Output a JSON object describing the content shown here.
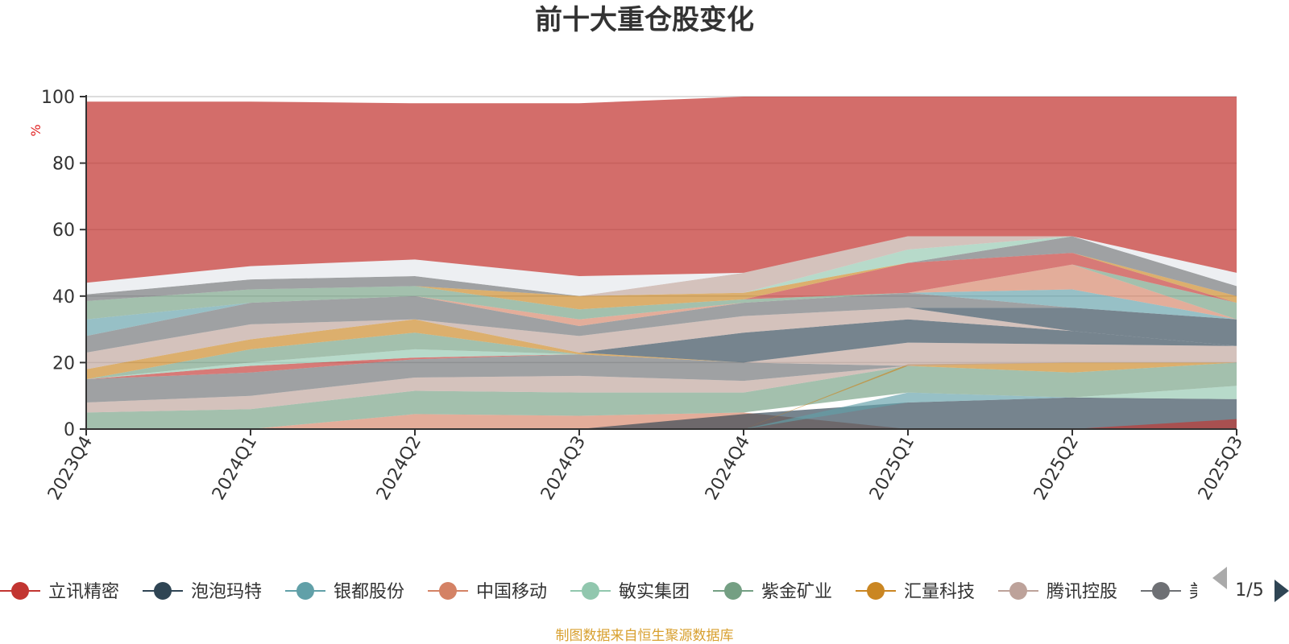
{
  "colors": {
    "source_text": "#d8a02f",
    "unit_text": "#e02020",
    "axis": "#333333",
    "grid": "#d0d0d0",
    "arrow_disabled": "#aaaaaa",
    "arrow_active": "#2f4554"
  },
  "pager": {
    "text": "1/5",
    "prev_icon": "triangle-left-icon",
    "next_icon": "triangle-right-icon"
  },
  "source_note": "制图数据来自恒生聚源数据库",
  "chart_data": {
    "type": "area",
    "title": "前十大重仓股变化",
    "ylabel": "%",
    "xlabel": "",
    "ylim": [
      0,
      100
    ],
    "yticks": [
      0,
      20,
      40,
      60,
      80,
      100
    ],
    "grid": true,
    "legend_position": "bottom",
    "categories": [
      "2023Q4",
      "2024Q1",
      "2024Q2",
      "2024Q3",
      "2024Q4",
      "2025Q1",
      "2025Q2",
      "2025Q3"
    ],
    "legend": [
      {
        "name": "立讯精密",
        "color": "#c23531"
      },
      {
        "name": "泡泡玛特",
        "color": "#2f4554"
      },
      {
        "name": "银都股份",
        "color": "#61a0a8"
      },
      {
        "name": "中国移动",
        "color": "#d48265"
      },
      {
        "name": "敏实集团",
        "color": "#91c7ae"
      },
      {
        "name": "紫金矿业",
        "color": "#749f83"
      },
      {
        "name": "汇量科技",
        "color": "#ca8622"
      },
      {
        "name": "腾讯控股",
        "color": "#bda29a"
      },
      {
        "name": "美",
        "color": "#6e7074"
      }
    ],
    "bands": [
      {
        "name": "中国移动",
        "color": "#d48265",
        "lower": [
          0,
          0,
          0,
          0,
          0,
          0,
          0,
          0
        ],
        "upper": [
          0,
          0,
          4.5,
          4,
          5,
          0,
          0,
          0
        ]
      },
      {
        "name": "泡泡玛特",
        "color": "#2f4554",
        "lower": [
          0,
          0,
          0,
          0,
          0,
          0,
          0,
          0
        ],
        "upper": [
          0,
          0,
          0,
          0,
          4.5,
          8,
          9.5,
          9
        ]
      },
      {
        "name": "立讯精密",
        "color": "#c23531",
        "lower": [
          0,
          0,
          0,
          0,
          0,
          0,
          0,
          0
        ],
        "upper": [
          0,
          0,
          0,
          0,
          0,
          0,
          0,
          3
        ]
      },
      {
        "name": "银都股份",
        "color": "#61a0a8",
        "lower": [
          0,
          0,
          0,
          0,
          0,
          8,
          9.5,
          9
        ],
        "upper": [
          0,
          0,
          0,
          0,
          0,
          11,
          9.5,
          9
        ]
      },
      {
        "name": "敏实集团",
        "color": "#91c7ae",
        "lower": [
          0,
          0,
          0,
          0,
          0,
          0,
          9.5,
          9
        ],
        "upper": [
          0,
          0,
          0,
          0,
          0,
          0,
          9.5,
          13
        ]
      },
      {
        "name": "紫金矿业",
        "color": "#749f83",
        "lower": [
          0,
          0,
          4.5,
          4,
          5,
          11,
          9.5,
          13
        ],
        "upper": [
          5,
          6,
          11.5,
          11,
          11,
          19,
          17,
          20
        ]
      },
      {
        "name": "腾讯控股",
        "color": "#bda29a",
        "lower": [
          5,
          6,
          11.5,
          11,
          11,
          19,
          17,
          20
        ],
        "upper": [
          8,
          10,
          15.5,
          16,
          14.5,
          19,
          17,
          20
        ]
      },
      {
        "name": "汇量科技",
        "color": "#ca8622",
        "lower": [
          0,
          0,
          0,
          0,
          0,
          19,
          17,
          20
        ],
        "upper": [
          0,
          0,
          0,
          0,
          0,
          19.5,
          20,
          20
        ]
      },
      {
        "name": "美",
        "color": "#6e7074",
        "lower": [
          8,
          10,
          15.5,
          16,
          14.5,
          19,
          20,
          20
        ],
        "upper": [
          15,
          17,
          21,
          22.5,
          20,
          19,
          20,
          20
        ]
      },
      {
        "name": "腾讯控股",
        "color": "#bda29a",
        "lower": [
          15,
          17,
          21,
          22.5,
          20,
          19,
          20,
          20
        ],
        "upper": [
          15,
          17,
          21,
          22.5,
          20,
          26,
          25.5,
          25
        ]
      },
      {
        "name": "立讯精密",
        "color": "#c23531",
        "lower": [
          15,
          17,
          21,
          22.5,
          20,
          26,
          25.5,
          25
        ],
        "upper": [
          15,
          19,
          21.5,
          22.5,
          20,
          26,
          25.5,
          25
        ]
      },
      {
        "name": "敏实集团",
        "color": "#91c7ae",
        "lower": [
          15,
          19,
          21.5,
          22.5,
          20,
          26,
          25.5,
          25
        ],
        "upper": [
          15,
          20,
          24,
          22.5,
          20,
          26,
          25.5,
          25
        ]
      },
      {
        "name": "紫金矿业",
        "color": "#749f83",
        "lower": [
          15,
          20,
          24,
          22.5,
          20,
          26,
          25.5,
          25
        ],
        "upper": [
          15,
          24,
          29,
          22.5,
          20,
          26,
          25.5,
          25
        ]
      },
      {
        "name": "汇量科技",
        "color": "#ca8622",
        "lower": [
          15,
          24,
          29,
          22.5,
          20,
          26,
          25.5,
          25
        ],
        "upper": [
          18,
          27,
          33,
          23,
          20,
          26,
          25.5,
          25
        ]
      },
      {
        "name": "泡泡玛特",
        "color": "#2f4554",
        "lower": [
          18,
          27,
          33,
          23,
          20,
          26,
          25.5,
          25
        ],
        "upper": [
          18,
          27,
          33,
          23,
          29,
          33,
          29.5,
          25
        ]
      },
      {
        "name": "腾讯控股",
        "color": "#bda29a",
        "lower": [
          18,
          27,
          33,
          23,
          29,
          33,
          29.5,
          25
        ],
        "upper": [
          23,
          31.5,
          33,
          28,
          34,
          36.5,
          29.5,
          25
        ]
      },
      {
        "name": "泡泡玛特",
        "color": "#2f4554",
        "lower": [
          23,
          31.5,
          33,
          28,
          34,
          36.5,
          29.5,
          25
        ],
        "upper": [
          23,
          31.5,
          33,
          28,
          34,
          36.5,
          36.5,
          33
        ]
      },
      {
        "name": "美",
        "color": "#6e7074",
        "lower": [
          23,
          31.5,
          33,
          28,
          34,
          36.5,
          36.5,
          33
        ],
        "upper": [
          28,
          38,
          40,
          31,
          38,
          41,
          36.5,
          33
        ]
      },
      {
        "name": "银都股份",
        "color": "#61a0a8",
        "lower": [
          28,
          38,
          40,
          31,
          38,
          41,
          36.5,
          33
        ],
        "upper": [
          33,
          38,
          40,
          31,
          38,
          41,
          42,
          33
        ]
      },
      {
        "name": "中国移动",
        "color": "#d48265",
        "lower": [
          33,
          38,
          40,
          31,
          38,
          41,
          42,
          33
        ],
        "upper": [
          33,
          38,
          40,
          33,
          38,
          41,
          49.5,
          33
        ]
      },
      {
        "name": "紫金矿业",
        "color": "#749f83",
        "lower": [
          33,
          38,
          40,
          33,
          38,
          41,
          49.5,
          33
        ],
        "upper": [
          38.5,
          42,
          43,
          36,
          39,
          41,
          49.5,
          38
        ]
      },
      {
        "name": "立讯精密",
        "color": "#c23531",
        "lower": [
          38.5,
          42,
          43,
          36,
          39,
          41,
          49.5,
          38
        ],
        "upper": [
          38.5,
          42,
          43,
          36,
          39,
          50,
          53,
          38
        ]
      },
      {
        "name": "汇量科技",
        "color": "#ca8622",
        "lower": [
          38.5,
          42,
          43,
          36,
          39,
          50,
          53,
          38
        ],
        "upper": [
          38.5,
          42,
          43,
          40,
          41,
          50,
          53,
          40
        ]
      },
      {
        "name": "美",
        "color": "#6e7074",
        "lower": [
          38.5,
          42,
          43,
          40,
          41,
          50,
          53,
          40
        ],
        "upper": [
          40.5,
          45,
          46,
          40,
          41,
          50,
          58,
          43
        ]
      },
      {
        "name": "敏实集团",
        "color": "#91c7ae",
        "lower": [
          40.5,
          45,
          46,
          40,
          41,
          50,
          58,
          43
        ],
        "upper": [
          40.5,
          45,
          46,
          40,
          41,
          54,
          58,
          43
        ]
      },
      {
        "name": "腾讯控股",
        "color": "#bda29a",
        "lower": [
          40.5,
          45,
          46,
          40,
          41,
          54,
          58,
          43
        ],
        "upper": [
          40.5,
          45,
          46,
          40,
          47,
          58,
          58,
          43
        ]
      },
      {
        "name": "美",
        "color": "#e4e7ec",
        "lower": [
          40.5,
          45,
          46,
          40,
          47,
          58,
          58,
          43
        ],
        "upper": [
          44,
          49,
          51,
          46,
          47,
          58,
          58,
          47
        ]
      },
      {
        "name": "立讯精密",
        "color": "#c23531",
        "lower": [
          44,
          49,
          51,
          46,
          47,
          58,
          58,
          47
        ],
        "upper": [
          98.5,
          98.5,
          98,
          98,
          100,
          100,
          100,
          100
        ]
      }
    ]
  }
}
